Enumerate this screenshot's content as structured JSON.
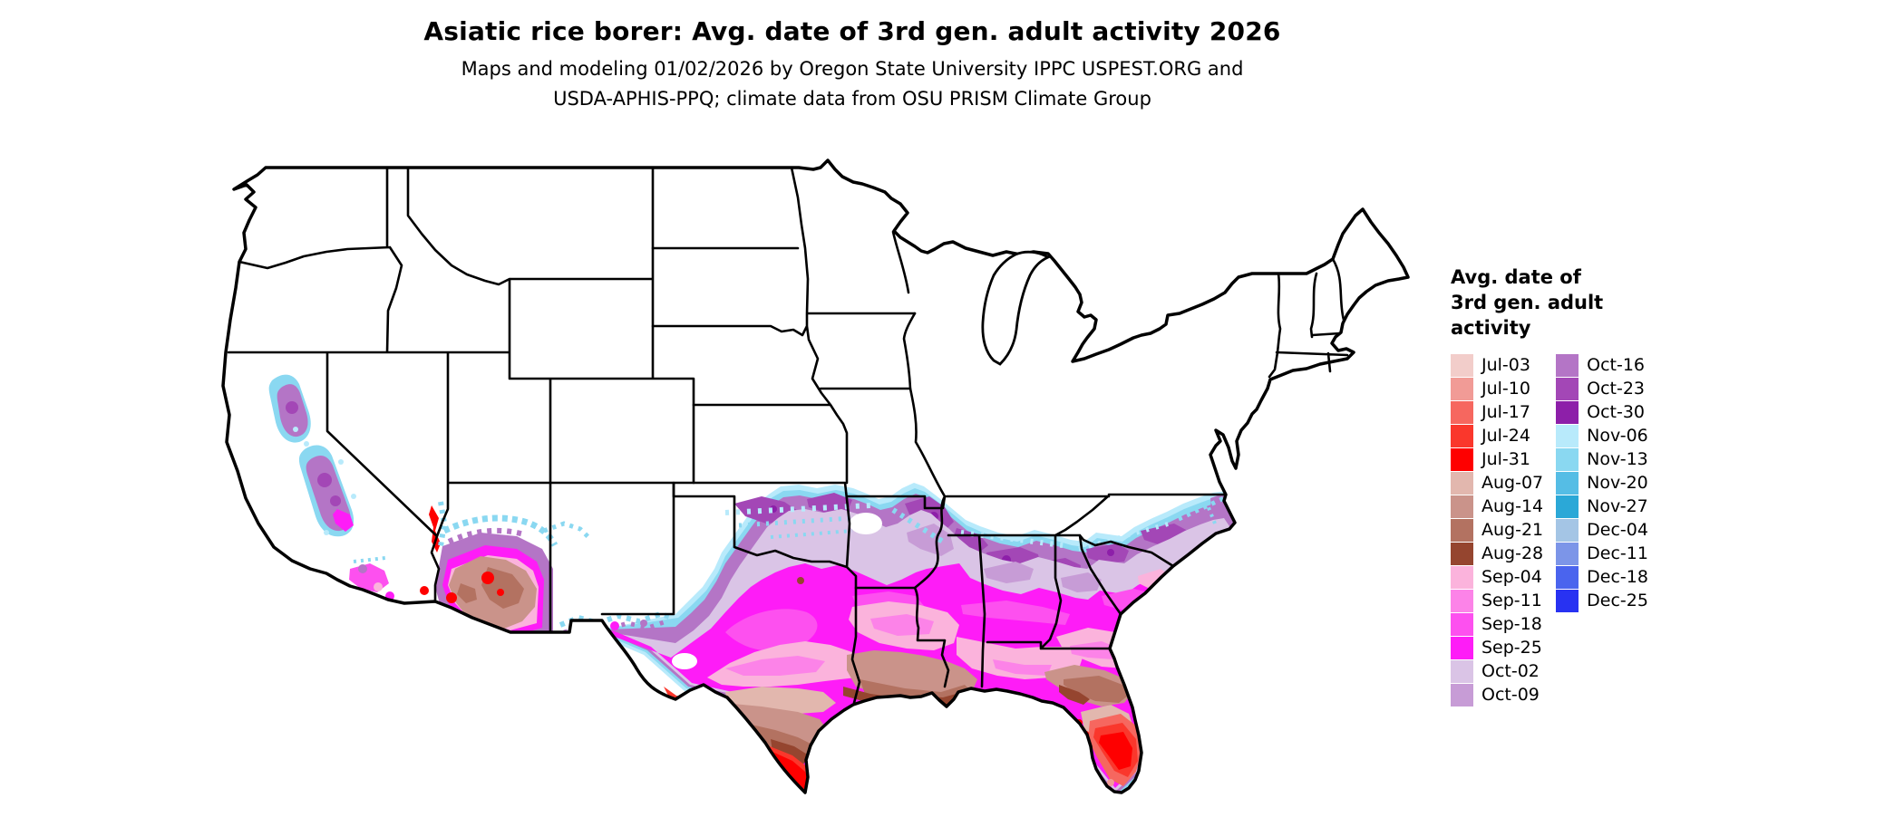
{
  "title": "Asiatic rice borer: Avg. date of 3rd gen. adult activity 2026",
  "subtitle_lines": [
    "Maps and modeling 01/02/2026 by Oregon State University IPPC USPEST.ORG and",
    "USDA-APHIS-PPQ; climate data from OSU PRISM Climate Group"
  ],
  "legend": {
    "title_lines": [
      "Avg. date of",
      "3rd gen. adult",
      "activity"
    ],
    "column_split": 15,
    "entries": [
      {
        "label": "Jul-03",
        "color": "#f2cdca"
      },
      {
        "label": "Jul-10",
        "color": "#f19b96"
      },
      {
        "label": "Jul-17",
        "color": "#f6675f"
      },
      {
        "label": "Jul-24",
        "color": "#fa372c"
      },
      {
        "label": "Jul-31",
        "color": "#fe0000"
      },
      {
        "label": "Aug-07",
        "color": "#e2b7ae"
      },
      {
        "label": "Aug-14",
        "color": "#ca938a"
      },
      {
        "label": "Aug-21",
        "color": "#b37261"
      },
      {
        "label": "Aug-28",
        "color": "#95452f"
      },
      {
        "label": "Sep-04",
        "color": "#fbb3dc"
      },
      {
        "label": "Sep-11",
        "color": "#fc83e8"
      },
      {
        "label": "Sep-18",
        "color": "#fd50ef"
      },
      {
        "label": "Sep-25",
        "color": "#fe1cf7"
      },
      {
        "label": "Oct-02",
        "color": "#dac4e6"
      },
      {
        "label": "Oct-09",
        "color": "#c79cd6"
      },
      {
        "label": "Oct-16",
        "color": "#b475c6"
      },
      {
        "label": "Oct-23",
        "color": "#a347b6"
      },
      {
        "label": "Oct-30",
        "color": "#8d1fa9"
      },
      {
        "label": "Nov-06",
        "color": "#b8eafb"
      },
      {
        "label": "Nov-13",
        "color": "#8ad8f1"
      },
      {
        "label": "Nov-20",
        "color": "#55bde5"
      },
      {
        "label": "Nov-27",
        "color": "#2ba8d7"
      },
      {
        "label": "Dec-04",
        "color": "#a4c5e5"
      },
      {
        "label": "Dec-11",
        "color": "#7c95e8"
      },
      {
        "label": "Dec-18",
        "color": "#4a64ee"
      },
      {
        "label": "Dec-25",
        "color": "#2832f2"
      }
    ]
  },
  "map": {
    "region": "Contiguous United States",
    "outline_color": "#000000",
    "background": "#ffffff"
  }
}
